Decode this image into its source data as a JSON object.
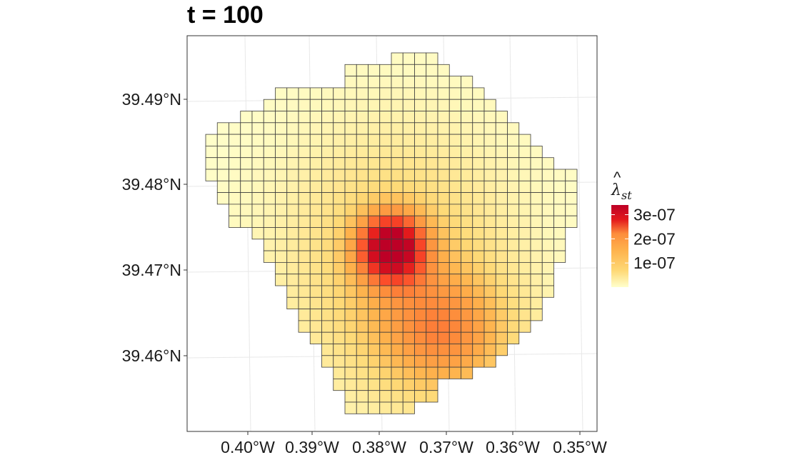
{
  "chart_data": {
    "type": "heatmap",
    "title": "t = 100",
    "x_ticks": [
      "0.40°W",
      "0.39°W",
      "0.38°W",
      "0.37°W",
      "0.36°W",
      "0.35°W"
    ],
    "y_ticks": [
      "39.49°N",
      "39.48°N",
      "39.47°N",
      "39.46°N"
    ],
    "x_tick_values": [
      -0.4,
      -0.39,
      -0.38,
      -0.37,
      -0.36,
      -0.35
    ],
    "y_tick_values": [
      39.49,
      39.48,
      39.47,
      39.46
    ],
    "xlim": [
      -0.4,
      -0.35
    ],
    "ylim": [
      39.46,
      39.49
    ],
    "grid": true,
    "legend": {
      "title_symbol": "λ",
      "title_hat": "^",
      "title_subscript": "st",
      "placement": "right",
      "labels": [
        "3e-07",
        "2e-07",
        "1e-07"
      ],
      "values": [
        3e-07,
        2e-07,
        1e-07
      ],
      "range": [
        0,
        3.4e-07
      ]
    },
    "colors": [
      "#FFFFCC",
      "#FFEDA0",
      "#FED976",
      "#FEB24C",
      "#FD8D3C",
      "#FC4E2A",
      "#E31A1C",
      "#BD0026"
    ],
    "grid_cells": {
      "rows": [
        {
          "row": 0,
          "from": 16,
          "to": 19
        },
        {
          "row": 1,
          "from": 12,
          "to": 20
        },
        {
          "row": 2,
          "from": 12,
          "to": 22
        },
        {
          "row": 3,
          "from": 6,
          "to": 23
        },
        {
          "row": 4,
          "from": 5,
          "to": 24
        },
        {
          "row": 5,
          "from": 3,
          "to": 25
        },
        {
          "row": 6,
          "from": 1,
          "to": 26
        },
        {
          "row": 7,
          "from": 0,
          "to": 27
        },
        {
          "row": 8,
          "from": 0,
          "to": 28
        },
        {
          "row": 9,
          "from": 0,
          "to": 29
        },
        {
          "row": 10,
          "from": 0,
          "to": 31
        },
        {
          "row": 11,
          "from": 1,
          "to": 31
        },
        {
          "row": 12,
          "from": 1,
          "to": 31
        },
        {
          "row": 13,
          "from": 2,
          "to": 31
        },
        {
          "row": 14,
          "from": 2,
          "to": 31
        },
        {
          "row": 15,
          "from": 4,
          "to": 30
        },
        {
          "row": 16,
          "from": 5,
          "to": 30
        },
        {
          "row": 17,
          "from": 5,
          "to": 30
        },
        {
          "row": 18,
          "from": 6,
          "to": 29
        },
        {
          "row": 19,
          "from": 6,
          "to": 29
        },
        {
          "row": 20,
          "from": 7,
          "to": 29
        },
        {
          "row": 21,
          "from": 7,
          "to": 28
        },
        {
          "row": 22,
          "from": 8,
          "to": 28
        },
        {
          "row": 23,
          "from": 8,
          "to": 27
        },
        {
          "row": 24,
          "from": 9,
          "to": 26
        },
        {
          "row": 25,
          "from": 10,
          "to": 25
        },
        {
          "row": 26,
          "from": 10,
          "to": 24
        },
        {
          "row": 27,
          "from": 11,
          "to": 22
        },
        {
          "row": 28,
          "from": 11,
          "to": 19
        },
        {
          "row": 29,
          "from": 12,
          "to": 19
        },
        {
          "row": 30,
          "from": 12,
          "to": 17
        }
      ],
      "peaks": [
        {
          "col": 15.5,
          "row": 16.2,
          "amplitude": 2.7e-07,
          "spread_x": 2.0,
          "spread_y": 2.0
        },
        {
          "col": 16.0,
          "row": 17.5,
          "amplitude": 1.2e-07,
          "spread_x": 7.0,
          "spread_y": 8.0
        },
        {
          "col": 20.5,
          "row": 24.0,
          "amplitude": 1.3e-07,
          "spread_x": 4.5,
          "spread_y": 4.0
        }
      ]
    }
  }
}
